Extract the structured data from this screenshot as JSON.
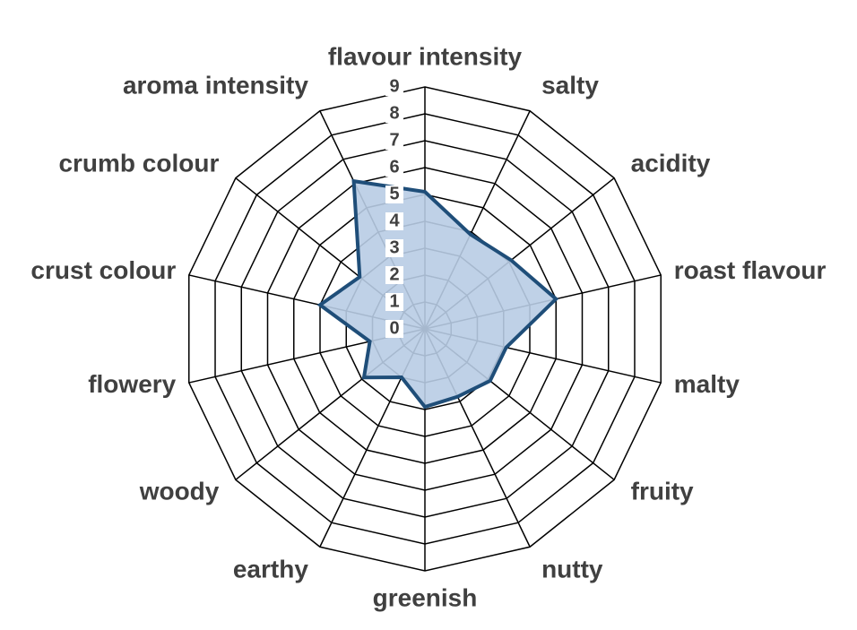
{
  "chart_data": {
    "type": "radar",
    "categories": [
      "flavour intensity",
      "salty",
      "acidity",
      "roast flavour",
      "malty",
      "fruity",
      "nutty",
      "greenish",
      "earthy",
      "woody",
      "flowery",
      "crust colour",
      "crumb colour",
      "aroma intensity"
    ],
    "series": [
      {
        "color": "#1f4e79",
        "fill": "#b8cce4",
        "values": [
          5.1,
          3.9,
          4.1,
          5.0,
          3.1,
          3.1,
          2.8,
          2.9,
          2.0,
          2.9,
          2.1,
          4.0,
          3.1,
          6.1
        ]
      }
    ],
    "ylim": [
      0,
      9
    ],
    "yticks": [
      0,
      1,
      2,
      3,
      4,
      5,
      6,
      7,
      8,
      9
    ],
    "grid": true
  }
}
